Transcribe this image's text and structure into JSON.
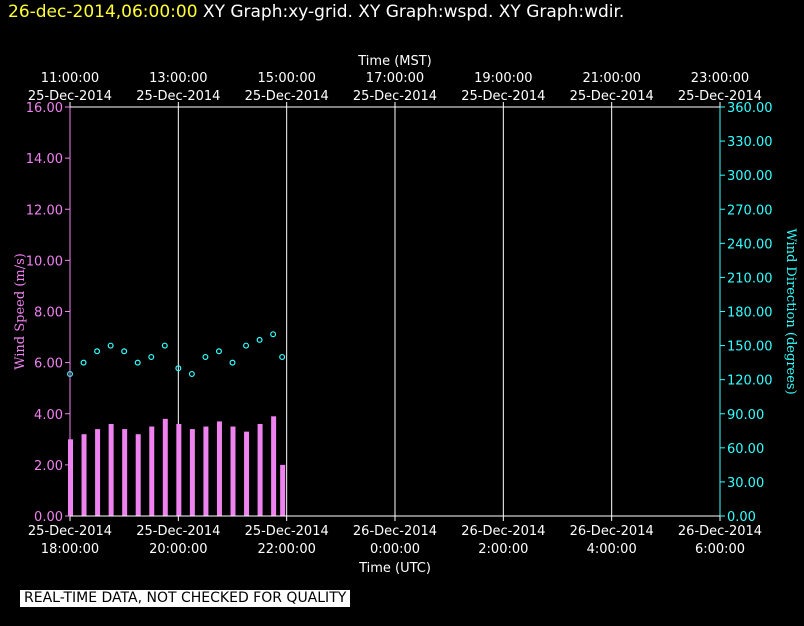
{
  "header": {
    "timestamp": "26-dec-2014,06:00:00",
    "graphs": [
      "XY Graph:xy-grid.",
      "XY Graph:wspd.",
      "XY Graph:wdir."
    ]
  },
  "footer": {
    "quality_notice": "REAL-TIME DATA, NOT CHECKED FOR QUALITY"
  },
  "colors": {
    "wind_speed": "#ee82ee",
    "wind_direction": "#33ffff",
    "header_time": "#ffff33"
  },
  "chart_data": {
    "type": "scatter",
    "top_axis": {
      "title": "Time (MST)",
      "ticks": [
        {
          "t": "11:00:00",
          "d": "25-Dec-2014"
        },
        {
          "t": "13:00:00",
          "d": "25-Dec-2014"
        },
        {
          "t": "15:00:00",
          "d": "25-Dec-2014"
        },
        {
          "t": "17:00:00",
          "d": "25-Dec-2014"
        },
        {
          "t": "19:00:00",
          "d": "25-Dec-2014"
        },
        {
          "t": "21:00:00",
          "d": "25-Dec-2014"
        },
        {
          "t": "23:00:00",
          "d": "25-Dec-2014"
        }
      ]
    },
    "bottom_axis": {
      "title": "Time (UTC)",
      "ticks": [
        {
          "d": "25-Dec-2014",
          "t": "18:00:00"
        },
        {
          "d": "25-Dec-2014",
          "t": "20:00:00"
        },
        {
          "d": "25-Dec-2014",
          "t": "22:00:00"
        },
        {
          "d": "26-Dec-2014",
          "t": "0:00:00"
        },
        {
          "d": "26-Dec-2014",
          "t": "2:00:00"
        },
        {
          "d": "26-Dec-2014",
          "t": "4:00:00"
        },
        {
          "d": "26-Dec-2014",
          "t": "6:00:00"
        }
      ]
    },
    "x_range_utc": [
      "2014-12-25T18:00",
      "2014-12-26T06:00"
    ],
    "left_axis": {
      "title": "Wind Speed (m/s)",
      "range": [
        0,
        16
      ],
      "ticks": [
        "0.00",
        "2.00",
        "4.00",
        "6.00",
        "8.00",
        "10.00",
        "12.00",
        "14.00",
        "16.00"
      ]
    },
    "right_axis": {
      "title": "Wind Direction (degrees)",
      "range": [
        0,
        360
      ],
      "ticks": [
        "0.00",
        "30.00",
        "60.00",
        "90.00",
        "120.00",
        "150.00",
        "180.00",
        "210.00",
        "240.00",
        "270.00",
        "300.00",
        "330.00",
        "360.00"
      ]
    },
    "grid": "vertical",
    "series": [
      {
        "name": "Wind Speed (m/s)",
        "axis": "left",
        "style": "bar",
        "x": [
          "2014-12-25T18:00",
          "2014-12-25T18:15",
          "2014-12-25T18:30",
          "2014-12-25T18:45",
          "2014-12-25T19:00",
          "2014-12-25T19:15",
          "2014-12-25T19:30",
          "2014-12-25T19:45",
          "2014-12-25T20:00",
          "2014-12-25T20:15",
          "2014-12-25T20:30",
          "2014-12-25T20:45",
          "2014-12-25T21:00",
          "2014-12-25T21:15",
          "2014-12-25T21:30",
          "2014-12-25T21:45",
          "2014-12-25T21:55"
        ],
        "values": [
          3.0,
          3.2,
          3.4,
          3.6,
          3.4,
          3.2,
          3.5,
          3.8,
          3.6,
          3.4,
          3.5,
          3.7,
          3.5,
          3.3,
          3.6,
          3.9,
          2.0
        ]
      },
      {
        "name": "Wind Direction (degrees)",
        "axis": "right",
        "style": "points",
        "x": [
          "2014-12-25T18:00",
          "2014-12-25T18:15",
          "2014-12-25T18:30",
          "2014-12-25T18:45",
          "2014-12-25T19:00",
          "2014-12-25T19:15",
          "2014-12-25T19:30",
          "2014-12-25T19:45",
          "2014-12-25T20:00",
          "2014-12-25T20:15",
          "2014-12-25T20:30",
          "2014-12-25T20:45",
          "2014-12-25T21:00",
          "2014-12-25T21:15",
          "2014-12-25T21:30",
          "2014-12-25T21:45",
          "2014-12-25T21:55"
        ],
        "values": [
          125,
          135,
          145,
          150,
          145,
          135,
          140,
          150,
          130,
          125,
          140,
          145,
          135,
          150,
          155,
          160,
          140
        ]
      }
    ]
  }
}
